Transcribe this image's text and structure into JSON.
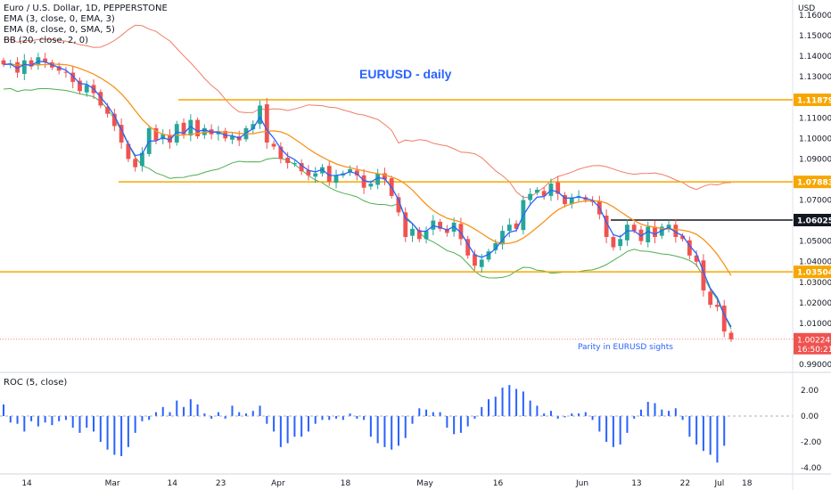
{
  "header": {
    "title": "Euro / U.S. Dollar, 1D, PEPPERSTONE",
    "indicators": [
      "EMA (3, close, 0, EMA, 3)",
      "EMA (8, close, 0, SMA, 5)",
      "BB (20, close, 2, 0)"
    ],
    "currency": "USD"
  },
  "annotations": {
    "chart_title": "EURUSD - daily",
    "note": "Parity in EURUSD sights"
  },
  "price_tags": [
    {
      "label": "1.11879",
      "style": "orange"
    },
    {
      "label": "1.07883",
      "style": "orange"
    },
    {
      "label": "1.06025",
      "style": "black"
    },
    {
      "label": "1.03504",
      "style": "orange"
    }
  ],
  "last_price": {
    "value": "1.00224",
    "countdown": "16:50:21"
  },
  "price_axis_ticks": [
    "1.16000",
    "1.15000",
    "1.14000",
    "1.13000",
    "1.12000",
    "1.11000",
    "1.10000",
    "1.09000",
    "1.08000",
    "1.07000",
    "1.06000",
    "1.05000",
    "1.04000",
    "1.03000",
    "1.02000",
    "1.01000",
    "1.00000",
    "0.99000"
  ],
  "roc_panel": {
    "label": "ROC (5, close)",
    "ticks": [
      "2.00",
      "0.00",
      "-2.00",
      "-4.00"
    ]
  },
  "time_axis": [
    "14",
    "Mar",
    "14",
    "23",
    "Apr",
    "18",
    "May",
    "16",
    "Jun",
    "13",
    "22",
    "Jul",
    "18"
  ],
  "colors": {
    "up_candle": "#26a69a",
    "down_candle": "#ef5350",
    "ema3": "#2962ff",
    "ema8": "#f7931a",
    "bb_upper": "#ef7d66",
    "bb_lower": "#4caf50",
    "level_line": "#f7a600",
    "roc_bar": "#2962ff",
    "annotation_text": "#2962ff",
    "last_price_tag": "#ef5350"
  },
  "chart_data": {
    "type": "candlestick",
    "title": "EURUSD - daily",
    "symbol": "Euro / U.S. Dollar, 1D, PEPPERSTONE",
    "ylim": [
      0.995,
      1.164
    ],
    "horizontal_levels": [
      1.11879,
      1.07883,
      1.06025,
      1.03504
    ],
    "series": [
      {
        "name": "EURUSD",
        "close": [
          1.136,
          1.1365,
          1.132,
          1.138,
          1.135,
          1.1395,
          1.137,
          1.1345,
          1.133,
          1.132,
          1.1275,
          1.123,
          1.126,
          1.122,
          1.116,
          1.112,
          1.106,
          1.098,
          1.09,
          1.086,
          1.093,
          1.105,
          1.099,
          1.102,
          1.098,
          1.107,
          1.102,
          1.109,
          1.101,
          1.105,
          1.102,
          1.103,
          1.1,
          1.101,
          1.099,
          1.105,
          1.107,
          1.116,
          1.098,
          1.096,
          1.09,
          1.088,
          1.088,
          1.084,
          1.082,
          1.083,
          1.086,
          1.079,
          1.082,
          1.083,
          1.085,
          1.082,
          1.076,
          1.078,
          1.083,
          1.08,
          1.072,
          1.064,
          1.052,
          1.056,
          1.051,
          1.055,
          1.06,
          1.056,
          1.054,
          1.059,
          1.051,
          1.043,
          1.038,
          1.041,
          1.045,
          1.049,
          1.055,
          1.058,
          1.056,
          1.07,
          1.073,
          1.075,
          1.072,
          1.078,
          1.073,
          1.068,
          1.071,
          1.072,
          1.07,
          1.069,
          1.063,
          1.052,
          1.047,
          1.051,
          1.058,
          1.055,
          1.05,
          1.057,
          1.052,
          1.057,
          1.058,
          1.052,
          1.051,
          1.043,
          1.04,
          1.026,
          1.019,
          1.018,
          1.006,
          1.0022
        ]
      }
    ],
    "roc_values": [
      0.9,
      -0.5,
      -0.6,
      -1.2,
      -0.4,
      -0.8,
      -0.5,
      -0.7,
      -0.4,
      -0.3,
      -0.9,
      -1.3,
      -0.9,
      -1.2,
      -2.0,
      -2.6,
      -3.0,
      -3.1,
      -2.4,
      -1.3,
      -0.4,
      -0.3,
      0.3,
      0.7,
      0.3,
      1.2,
      0.7,
      1.3,
      0.9,
      0.2,
      -0.2,
      0.3,
      -0.2,
      0.8,
      0.3,
      0.2,
      0.4,
      0.8,
      -0.6,
      -1.2,
      -2.4,
      -2.1,
      -1.6,
      -1.6,
      -1.2,
      -0.6,
      -0.3,
      -0.3,
      -0.2,
      -0.3,
      0.2,
      -0.2,
      -0.3,
      -1.6,
      -2.1,
      -2.4,
      -2.6,
      -2.3,
      -1.7,
      -0.6,
      0.6,
      0.5,
      0.3,
      0.3,
      -0.9,
      -1.4,
      -1.3,
      -0.8,
      -0.2,
      0.7,
      1.3,
      1.5,
      2.2,
      2.4,
      2.1,
      1.9,
      1.2,
      0.8,
      0.2,
      0.4,
      -0.2,
      -0.1,
      0.2,
      0.2,
      0.3,
      -0.3,
      -1.2,
      -2.0,
      -2.4,
      -2.2,
      -1.3,
      -0.2,
      0.5,
      1.1,
      1.0,
      0.5,
      0.4,
      0.6,
      -0.3,
      -1.6,
      -2.2,
      -2.7,
      -3.0,
      -3.6,
      -2.3
    ]
  }
}
